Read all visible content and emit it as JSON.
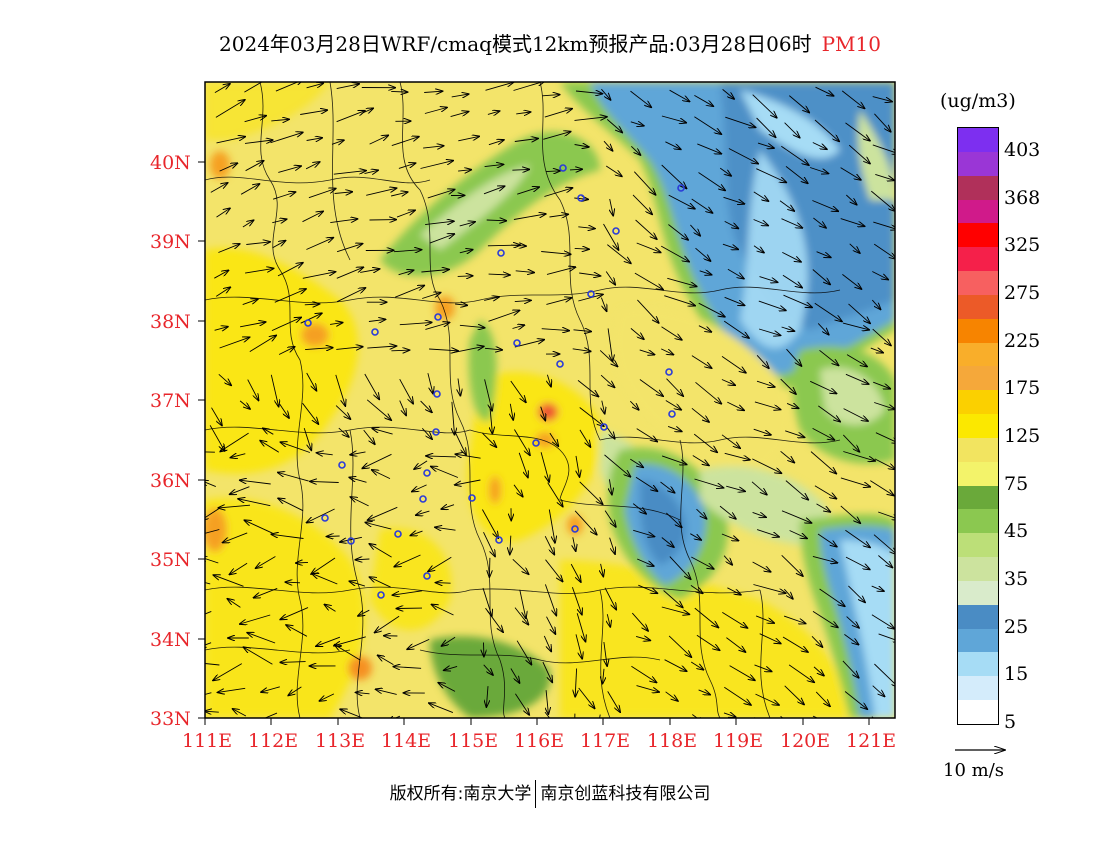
{
  "title": {
    "main": "2024年03月28日WRF/cmaq模式12km预报产品:03月28日06时",
    "variable": "PM10"
  },
  "map": {
    "lat_labels": [
      "40N",
      "39N",
      "38N",
      "37N",
      "36N",
      "35N",
      "34N",
      "33N"
    ],
    "lon_labels": [
      "111E",
      "112E",
      "113E",
      "114E",
      "115E",
      "116E",
      "117E",
      "118E",
      "119E",
      "120E",
      "121E"
    ]
  },
  "legend": {
    "unit": "(ug/m3)",
    "levels": [
      "403",
      "368",
      "325",
      "275",
      "225",
      "175",
      "125",
      "75",
      "45",
      "35",
      "25",
      "15",
      "5"
    ],
    "colors": [
      "#7d2ff0",
      "#9a36d6",
      "#b0305a",
      "#d01a8a",
      "#ff0000",
      "#f5204a",
      "#f76060",
      "#ec5a28",
      "#f78400",
      "#f9ae2a",
      "#f5a83a",
      "#fbd000",
      "#fbe800",
      "#f2e460",
      "#f3f36a",
      "#6aa93a",
      "#8bc850",
      "#bcdf78",
      "#cce39e",
      "#d9ebcb",
      "#4a8cc4",
      "#5fa6d8",
      "#a6dcf5",
      "#d4ecfb",
      "#ffffff"
    ]
  },
  "reference_vector": {
    "label": "10 m/s"
  },
  "footer": {
    "owner": "版权所有:南京大学",
    "company": "南京创蓝科技有限公司"
  }
}
